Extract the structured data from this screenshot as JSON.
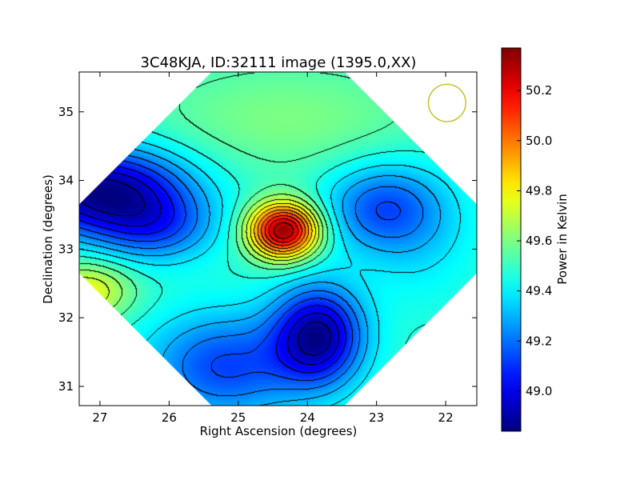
{
  "chart_data": {
    "type": "heatmap",
    "title": "3C48KJA, ID:32111 image (1395.0,XX)",
    "xlabel": "Right Ascension (degrees)",
    "ylabel": "Declination (degrees)",
    "xlim": [
      27.3,
      21.55
    ],
    "ylim": [
      30.72,
      35.58
    ],
    "x_ticks": [
      "27",
      "26",
      "25",
      "24",
      "23",
      "22"
    ],
    "x_tick_values": [
      27,
      26,
      25,
      24,
      23,
      22
    ],
    "y_ticks": [
      "31",
      "32",
      "33",
      "34",
      "35"
    ],
    "y_tick_values": [
      31,
      32,
      33,
      34,
      35
    ],
    "colorbar": {
      "label": "Power in Kelvin",
      "range": [
        48.84,
        50.37
      ],
      "ticks": [
        "49.0",
        "49.2",
        "49.4",
        "49.6",
        "49.8",
        "50.0",
        "50.2"
      ],
      "tick_values": [
        49.0,
        49.2,
        49.4,
        49.6,
        49.8,
        50.0,
        50.2
      ]
    },
    "colormap": "jet",
    "base_level": 49.48,
    "features": [
      {
        "kind": "peak",
        "ra": 24.35,
        "dec": 33.28,
        "value": 50.35
      },
      {
        "kind": "trough",
        "ra": 27.1,
        "dec": 33.85,
        "value": 48.86
      },
      {
        "kind": "trough",
        "ra": 23.85,
        "dec": 31.7,
        "value": 48.9
      },
      {
        "kind": "trough",
        "ra": 22.95,
        "dec": 33.62,
        "value": 49.12
      },
      {
        "kind": "peak",
        "ra": 27.2,
        "dec": 32.4,
        "value": 49.78
      }
    ],
    "beam_circle": {
      "ra": 21.98,
      "dec": 35.13,
      "radius_deg": 0.37,
      "color": "#bfbf20"
    },
    "contour_color": "#000000",
    "grid": false
  }
}
